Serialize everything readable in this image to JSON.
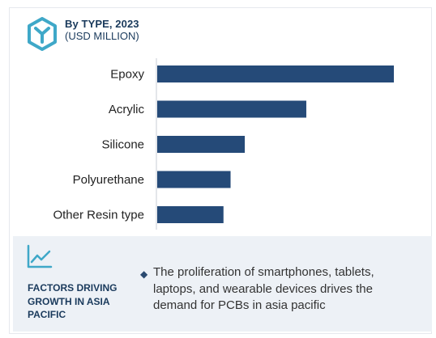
{
  "header": {
    "title": "By TYPE, 2023",
    "subtitle": "(USD MILLION)"
  },
  "colors": {
    "bar": "#254a78",
    "accent": "#3fa8c8",
    "text_dark": "#1a3a5c"
  },
  "chart_data": {
    "type": "bar",
    "orientation": "horizontal",
    "title": "By TYPE, 2023",
    "subtitle": "(USD MILLION)",
    "categories": [
      "Epoxy",
      "Acrylic",
      "Silicone",
      "Polyurethane",
      "Other Resin type"
    ],
    "values": [
      100,
      63,
      37,
      31,
      28
    ],
    "xlim": [
      0,
      100
    ],
    "grid": false,
    "legend": "none"
  },
  "factors": {
    "label": "FACTORS DRIVING GROWTH IN ASIA PACIFIC",
    "bullet_text": "The proliferation of smartphones, tablets, laptops, and wearable devices drives the demand for PCBs in asia pacific",
    "icon": "trend-line-icon"
  },
  "logo_icon": "hexagon-y-logo-icon"
}
